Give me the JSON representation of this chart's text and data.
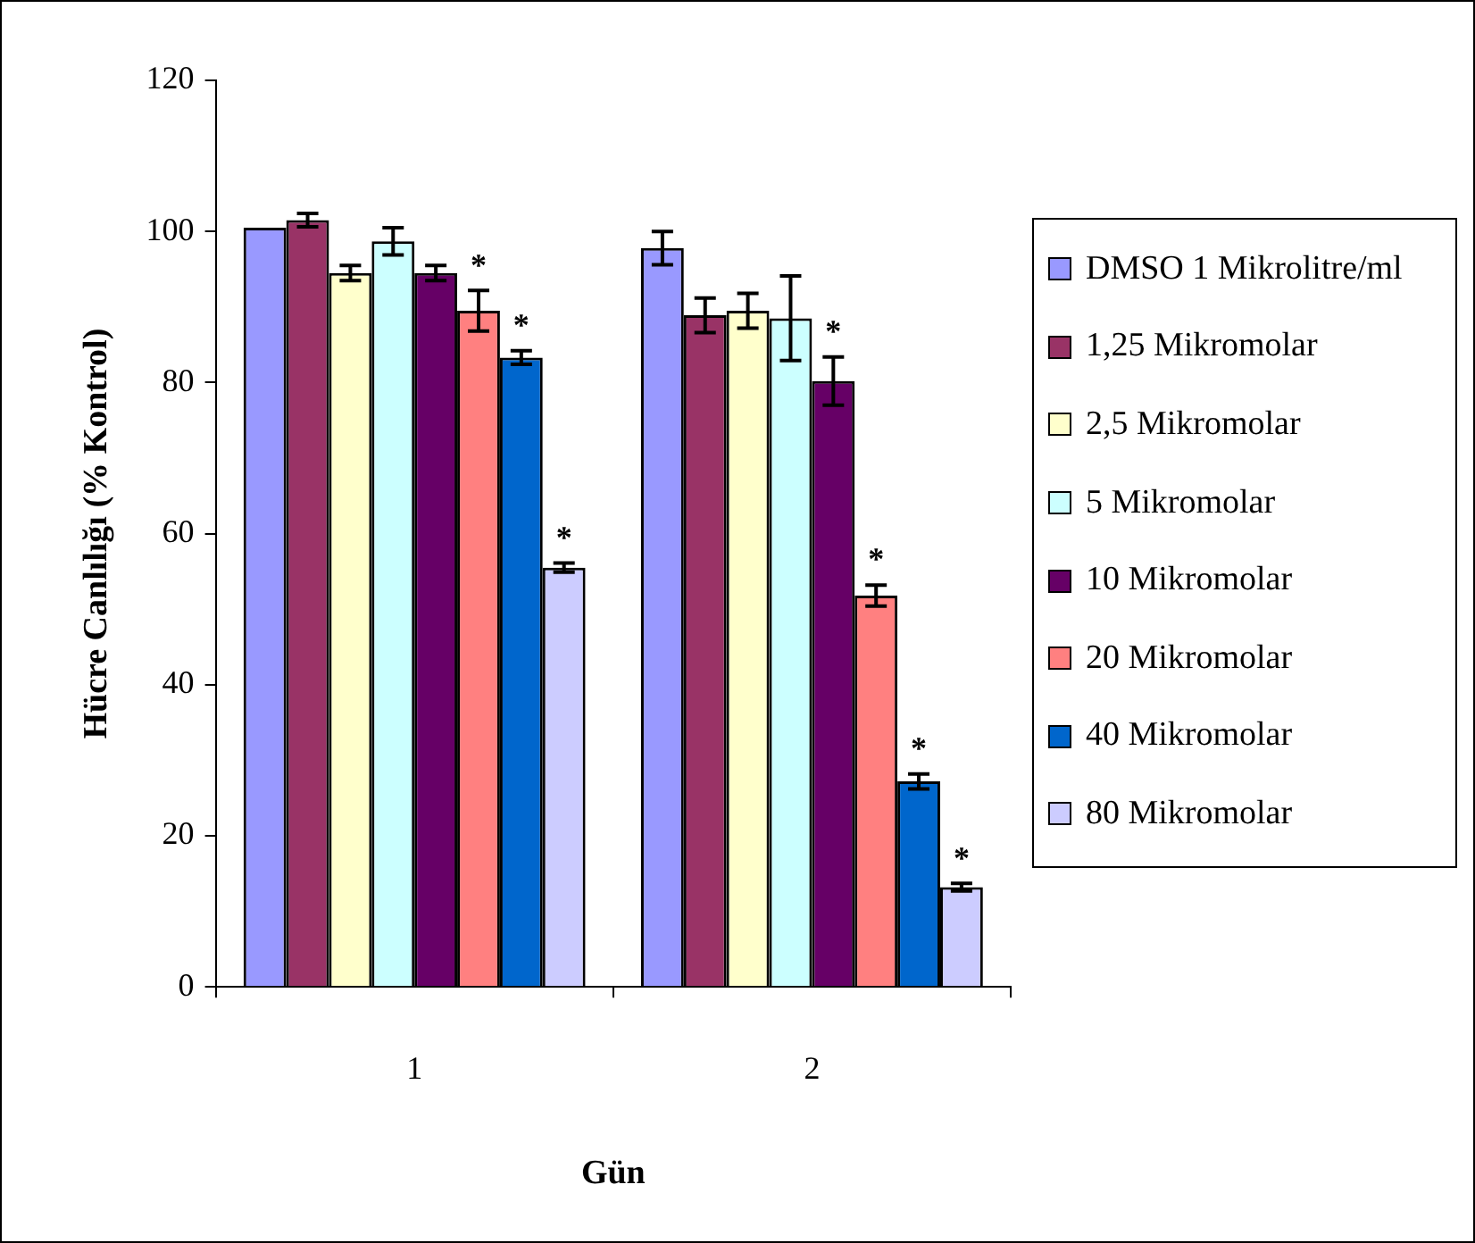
{
  "chart_data": {
    "type": "bar",
    "xlabel": "Gün",
    "ylabel": "Hücre Canlılığı (% Kontrol)",
    "categories": [
      "1",
      "2"
    ],
    "series": [
      {
        "name": "DMSO 1 Mikrolitre/ml",
        "color": "#9999ff",
        "values": [
          100.5,
          97.8
        ],
        "errors": [
          null,
          2.2
        ]
      },
      {
        "name": "1,25 Mikromolar",
        "color": "#993366",
        "values": [
          101.5,
          88.9
        ],
        "errors": [
          0.9,
          2.3
        ]
      },
      {
        "name": "2,5 Mikromolar",
        "color": "#ffffcc",
        "values": [
          94.5,
          89.5
        ],
        "errors": [
          1,
          2.3
        ]
      },
      {
        "name": "5 Mikromolar",
        "color": "#ccffff",
        "values": [
          98.7,
          88.5
        ],
        "errors": [
          1.8,
          5.6
        ]
      },
      {
        "name": "10 Mikromolar",
        "color": "#660066",
        "values": [
          94.5,
          80.2
        ],
        "errors": [
          1,
          3.2
        ],
        "value_labels": [
          null,
          "*"
        ]
      },
      {
        "name": "20 Mikromolar",
        "color": "#ff8080",
        "values": [
          89.5,
          51.8
        ],
        "errors": [
          2.7,
          1.4
        ],
        "value_labels": [
          "*",
          "*"
        ]
      },
      {
        "name": "40 Mikromolar",
        "color": "#0066cc",
        "values": [
          83.3,
          27.2
        ],
        "errors": [
          0.9,
          1
        ],
        "value_labels": [
          "*",
          "*"
        ]
      },
      {
        "name": "80 Mikromolar",
        "color": "#ccccff",
        "values": [
          55.5,
          13.2
        ],
        "errors": [
          0.6,
          0.5
        ],
        "value_labels": [
          "*",
          "*"
        ]
      }
    ],
    "ylim": [
      0,
      120
    ],
    "yticks": [
      0,
      20,
      40,
      60,
      80,
      100,
      120
    ],
    "grid": false,
    "legend": "right"
  }
}
